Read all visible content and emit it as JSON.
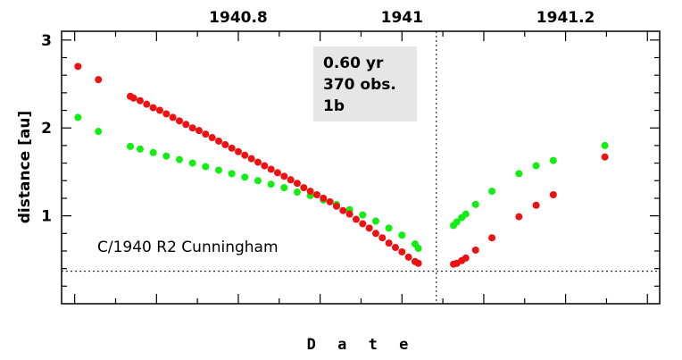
{
  "chart_data": {
    "type": "scatter",
    "title": "",
    "xlabel": "D a t e",
    "ylabel": "distance [au]",
    "xlim": [
      1940.584,
      1941.315
    ],
    "ylim": [
      0.0,
      3.1
    ],
    "x_ticks": [
      {
        "value": 1940.8,
        "label": "1940.8"
      },
      {
        "value": 1941.0,
        "label": "1941"
      },
      {
        "value": 1941.2,
        "label": "1941.2"
      }
    ],
    "y_ticks": [
      {
        "value": 1,
        "label": "1"
      },
      {
        "value": 2,
        "label": "2"
      },
      {
        "value": 3,
        "label": "3"
      }
    ],
    "reference_lines": {
      "perihelion_date": 1941.042,
      "perihelion_distance": 0.37
    },
    "info_box": [
      "0.60 yr",
      "370 obs.",
      "1b"
    ],
    "annotation": "C/1940 R2 Cunningham",
    "colors": {
      "red": "#ee1111",
      "green": "#11ee11",
      "info_box_bg": "#e6e6e6"
    },
    "series": [
      {
        "color": "#ee1111",
        "x": [
          1940.604,
          1940.629,
          1940.668,
          1940.672,
          1940.68,
          1940.688,
          1940.696,
          1940.704,
          1940.712,
          1940.72,
          1940.728,
          1940.736,
          1940.744,
          1940.752,
          1940.76,
          1940.768,
          1940.776,
          1940.784,
          1940.792,
          1940.8,
          1940.808,
          1940.816,
          1940.824,
          1940.832,
          1940.84,
          1940.848,
          1940.856,
          1940.864,
          1940.872,
          1940.88,
          1940.888,
          1940.896,
          1940.904,
          1940.912,
          1940.92,
          1940.928,
          1940.936,
          1940.944,
          1940.952,
          1940.96,
          1940.968,
          1940.976,
          1940.984,
          1940.992,
          1941.0,
          1941.008,
          1941.016,
          1941.02,
          1941.063,
          1941.067,
          1941.073,
          1941.078,
          1941.09,
          1941.11,
          1941.143,
          1941.164,
          1941.185,
          1941.248
        ],
        "y": [
          2.7,
          2.55,
          2.36,
          2.34,
          2.31,
          2.27,
          2.23,
          2.2,
          2.16,
          2.12,
          2.08,
          2.04,
          2.0,
          1.97,
          1.93,
          1.89,
          1.85,
          1.81,
          1.77,
          1.73,
          1.69,
          1.65,
          1.61,
          1.57,
          1.53,
          1.49,
          1.45,
          1.41,
          1.37,
          1.32,
          1.28,
          1.24,
          1.2,
          1.16,
          1.11,
          1.06,
          1.02,
          0.96,
          0.91,
          0.86,
          0.8,
          0.75,
          0.69,
          0.64,
          0.59,
          0.53,
          0.48,
          0.46,
          0.45,
          0.46,
          0.49,
          0.52,
          0.61,
          0.75,
          0.99,
          1.12,
          1.24,
          1.67
        ]
      },
      {
        "color": "#11ee11",
        "x": [
          1940.604,
          1940.629,
          1940.668,
          1940.68,
          1940.696,
          1940.712,
          1940.728,
          1940.744,
          1940.76,
          1940.776,
          1940.792,
          1940.808,
          1940.824,
          1940.84,
          1940.856,
          1940.872,
          1940.888,
          1940.904,
          1940.92,
          1940.936,
          1940.952,
          1940.968,
          1940.984,
          1941.0,
          1941.016,
          1941.02,
          1941.063,
          1941.067,
          1941.073,
          1941.078,
          1941.09,
          1941.11,
          1941.143,
          1941.164,
          1941.185,
          1941.248
        ],
        "y": [
          2.12,
          1.96,
          1.79,
          1.76,
          1.72,
          1.68,
          1.64,
          1.6,
          1.56,
          1.52,
          1.48,
          1.44,
          1.4,
          1.36,
          1.32,
          1.27,
          1.23,
          1.18,
          1.13,
          1.07,
          1.01,
          0.94,
          0.86,
          0.78,
          0.68,
          0.63,
          0.89,
          0.93,
          0.98,
          1.02,
          1.13,
          1.28,
          1.48,
          1.57,
          1.63,
          1.8
        ]
      }
    ]
  }
}
